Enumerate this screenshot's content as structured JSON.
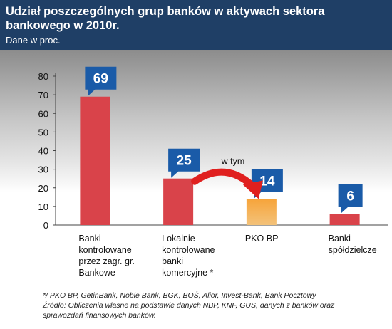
{
  "chart_data": {
    "type": "bar",
    "title": "Udział poszczególnych grup banków w aktywach sektora bankowego w 2010r.",
    "subtitle": "Dane w proc.",
    "categories": [
      [
        "Banki",
        "kontrolowane",
        "przez zagr. gr.",
        "Bankowe"
      ],
      [
        "Lokalnie",
        "kontrolowane",
        "banki",
        "komercyjne *"
      ],
      [
        "PKO BP"
      ],
      [
        "Banki",
        "spółdzielcze"
      ]
    ],
    "values": [
      69,
      25,
      14,
      6
    ],
    "ylim": [
      0,
      80
    ],
    "yticks": [
      0,
      10,
      20,
      30,
      40,
      50,
      60,
      70,
      80
    ],
    "annotation": "w tym",
    "grid": false,
    "colors": {
      "bar": "#d9434a",
      "bar_highlight_top": "#f7a43a",
      "bar_highlight_bottom": "#f3c27a",
      "label_bg": "#1a5ba8",
      "arrow": "#e0201f",
      "header": "#1f3f66"
    }
  },
  "footnotes": {
    "note": "*/ PKO BP, GetinBank, Noble Bank, BGK, BOŚ, Alior, Invest-Bank, Bank Pocztowy",
    "source_line1": "Źródło: Obliczenia własne na podstawie danych NBP, KNF, GUS, danych z banków oraz",
    "source_line2": "sprawozdań finansowych banków."
  }
}
